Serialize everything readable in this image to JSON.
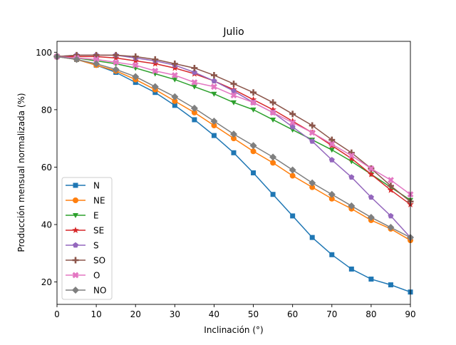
{
  "chart_data": {
    "type": "line",
    "title": "Julio",
    "xlabel": "Inclinación (°)",
    "ylabel": "Producción mensual normalizada (%)",
    "xlim": [
      0,
      90
    ],
    "ylim": [
      12.2,
      103.8
    ],
    "xticks": [
      0,
      10,
      20,
      30,
      40,
      50,
      60,
      70,
      80,
      90
    ],
    "yticks": [
      20,
      40,
      60,
      80,
      100
    ],
    "grid": false,
    "legend_position": "lower-left",
    "x": [
      0,
      5,
      10,
      15,
      20,
      25,
      30,
      35,
      40,
      45,
      50,
      55,
      60,
      65,
      70,
      75,
      80,
      85,
      90
    ],
    "series": [
      {
        "name": "N",
        "color": "#1f77b4",
        "marker": "square",
        "values": [
          98.5,
          97.5,
          95.5,
          93.0,
          89.5,
          86.0,
          81.5,
          76.5,
          71.0,
          65.0,
          58.0,
          50.5,
          43.0,
          35.5,
          29.5,
          24.5,
          21.0,
          19.0,
          16.5
        ]
      },
      {
        "name": "NE",
        "color": "#ff7f0e",
        "marker": "circle",
        "values": [
          98.5,
          97.5,
          95.5,
          93.5,
          90.5,
          87.0,
          83.0,
          79.0,
          74.5,
          70.0,
          65.5,
          61.5,
          57.0,
          53.0,
          49.0,
          45.5,
          41.5,
          38.5,
          34.5
        ]
      },
      {
        "name": "E",
        "color": "#2ca02c",
        "marker": "triangle-down",
        "values": [
          98.5,
          98.0,
          97.0,
          96.0,
          94.5,
          92.5,
          90.5,
          88.0,
          85.5,
          82.5,
          80.0,
          76.5,
          73.0,
          69.5,
          66.0,
          62.0,
          57.5,
          53.0,
          48.5
        ]
      },
      {
        "name": "SE",
        "color": "#d62728",
        "marker": "star",
        "values": [
          98.5,
          98.5,
          98.5,
          98.0,
          97.0,
          96.0,
          94.5,
          92.5,
          90.0,
          87.0,
          83.5,
          80.0,
          76.0,
          72.0,
          67.5,
          63.0,
          57.5,
          52.0,
          47.0
        ]
      },
      {
        "name": "S",
        "color": "#9467bd",
        "marker": "pentagon",
        "values": [
          98.5,
          99.0,
          99.0,
          99.0,
          98.0,
          97.0,
          95.5,
          93.0,
          90.0,
          86.5,
          82.5,
          79.0,
          74.0,
          69.0,
          62.5,
          56.5,
          49.5,
          43.0,
          35.5
        ]
      },
      {
        "name": "SO",
        "color": "#8c564b",
        "marker": "plus",
        "values": [
          98.5,
          99.0,
          99.0,
          99.0,
          98.5,
          97.5,
          96.0,
          94.5,
          92.0,
          89.0,
          86.0,
          82.5,
          78.5,
          74.5,
          69.5,
          65.0,
          59.5,
          53.5,
          48.0
        ]
      },
      {
        "name": "O",
        "color": "#e377c2",
        "marker": "x",
        "values": [
          98.5,
          98.0,
          97.5,
          96.5,
          95.5,
          93.5,
          92.0,
          89.5,
          88.0,
          85.0,
          82.5,
          79.0,
          75.5,
          72.0,
          68.0,
          64.0,
          59.5,
          55.5,
          50.5
        ]
      },
      {
        "name": "NO",
        "color": "#7f7f7f",
        "marker": "diamond",
        "values": [
          98.5,
          97.5,
          96.0,
          94.0,
          91.5,
          88.0,
          84.5,
          80.5,
          76.0,
          71.5,
          67.5,
          63.5,
          59.0,
          54.5,
          50.5,
          46.5,
          42.5,
          39.0,
          35.5
        ]
      }
    ]
  }
}
